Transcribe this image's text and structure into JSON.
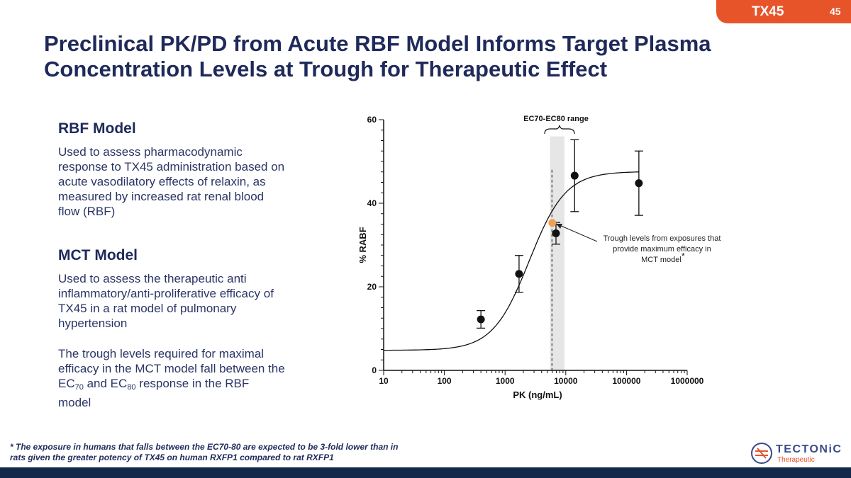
{
  "header": {
    "drug": "TX45",
    "page_number": "45"
  },
  "title": "Preclinical PK/PD from Acute RBF Model Informs Target Plasma Concentration Levels at Trough for Therapeutic Effect",
  "left_panel": {
    "rbf_heading": "RBF Model",
    "rbf_text": "Used to assess pharmacodynamic response to TX45 administration based on acute vasodilatory effects of relaxin, as measured by increased rat renal blood flow (RBF)",
    "mct_heading": "MCT Model",
    "mct_text": "Used to assess the therapeutic anti inflammatory/anti-proliferative efficacy of TX45 in a rat model of pulmonary hypertension",
    "trough_pre": "The trough levels required for maximal efficacy in the MCT model fall between the EC",
    "trough_sub1": "70",
    "trough_mid": " and EC",
    "trough_sub2": "80",
    "trough_post": " response in the RBF model"
  },
  "footnote": "* The exposure in humans that falls between the EC70-80 are expected to be 3-fold lower than in rats given the greater potency of TX45 on human RXFP1 compared to rat RXFP1",
  "logo": {
    "word": "TECTONiC",
    "sub": "Therapeutic"
  },
  "chart_data": {
    "type": "scatter",
    "xscale": "log",
    "xlim": [
      10,
      1000000
    ],
    "ylim": [
      0,
      60
    ],
    "xlabel": "PK (ng/mL)",
    "ylabel": "% RABF",
    "x_ticks": [
      "10",
      "100",
      "1000",
      "10000",
      "100000",
      "1000000"
    ],
    "y_ticks": [
      "0",
      "20",
      "40",
      "60"
    ],
    "points": [
      {
        "x": 400,
        "y": 12.2,
        "err": 2.1
      },
      {
        "x": 1700,
        "y": 23.1,
        "err": 4.4
      },
      {
        "x": 6900,
        "y": 32.8,
        "err": 2.6
      },
      {
        "x": 14000,
        "y": 46.6,
        "err": 8.6
      },
      {
        "x": 160000,
        "y": 44.8,
        "err": 7.7
      }
    ],
    "fit": {
      "bottom": 4.8,
      "top": 47.6,
      "ec50": 2500,
      "hill": 1.45
    },
    "ec_band": {
      "x_low": 5500,
      "x_high": 9500
    },
    "trough_marker": {
      "x": 6000,
      "y": 35.3,
      "color": "#f0a050"
    },
    "band_label": "EC70-EC80 range",
    "annotation": "Trough levels from exposures that provide maximum efficacy in MCT model",
    "annotation_mark": "*"
  },
  "colors": {
    "title": "#1f2a5a",
    "accent": "#e8542a",
    "band": "#e6e6e6",
    "footer_bar": "#13294b"
  }
}
